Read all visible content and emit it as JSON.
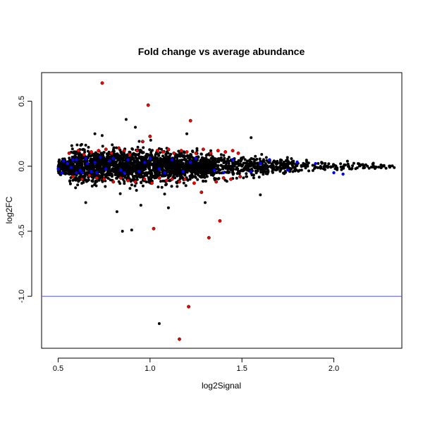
{
  "chart_data": {
    "type": "scatter",
    "title": "Fold change vs average abundance",
    "xlabel": "log2Signal",
    "ylabel": "log2FC",
    "xlim": [
      0.41,
      2.37
    ],
    "ylim": [
      -1.4,
      0.72
    ],
    "xticks": [
      0.5,
      1.0,
      1.5,
      2.0
    ],
    "xtick_labels": [
      "0.5",
      "1.0",
      "1.5",
      "2.0"
    ],
    "yticks": [
      -1.0,
      -0.5,
      0.0,
      0.5
    ],
    "ytick_labels": [
      "-1.0",
      "-0.5",
      "0.0",
      "0.5"
    ],
    "grid": false,
    "legend": "none",
    "colors": {
      "black": "#000000",
      "red": "#ff0000",
      "blue": "#0000ff",
      "hline": "#5555ee"
    },
    "hline": {
      "y": -1.0
    },
    "series": [
      {
        "color": "red",
        "points": [
          [
            0.74,
            0.64
          ],
          [
            0.99,
            0.47
          ],
          [
            1.22,
            0.35
          ],
          [
            1.02,
            -0.48
          ],
          [
            1.38,
            -0.42
          ],
          [
            1.32,
            -0.55
          ],
          [
            1.21,
            -1.08
          ],
          [
            1.16,
            -1.33
          ],
          [
            0.56,
            0.1
          ],
          [
            0.61,
            0.12
          ],
          [
            0.64,
            0.09
          ],
          [
            0.68,
            0.11
          ],
          [
            0.72,
            0.12
          ],
          [
            0.76,
            0.13
          ],
          [
            0.79,
            0.1
          ],
          [
            0.83,
            0.14
          ],
          [
            0.86,
            0.12
          ],
          [
            0.89,
            0.09
          ],
          [
            0.93,
            0.12
          ],
          [
            0.96,
            0.19
          ],
          [
            1.0,
            0.23
          ],
          [
            1.04,
            0.12
          ],
          [
            1.07,
            0.11
          ],
          [
            1.1,
            0.13
          ],
          [
            1.13,
            0.1
          ],
          [
            1.17,
            0.12
          ],
          [
            1.2,
            0.11
          ],
          [
            1.25,
            0.1
          ],
          [
            1.29,
            0.13
          ],
          [
            1.33,
            0.1
          ],
          [
            1.37,
            0.12
          ],
          [
            1.41,
            0.11
          ],
          [
            1.45,
            0.12
          ],
          [
            1.48,
            0.1
          ],
          [
            0.58,
            -0.08
          ],
          [
            0.63,
            -0.1
          ],
          [
            0.67,
            -0.07
          ],
          [
            0.71,
            -0.09
          ],
          [
            0.75,
            -0.1
          ],
          [
            0.8,
            -0.12
          ],
          [
            0.84,
            -0.09
          ],
          [
            0.88,
            -0.11
          ],
          [
            0.92,
            -0.12
          ],
          [
            0.97,
            -0.1
          ],
          [
            1.01,
            -0.13
          ],
          [
            1.05,
            -0.09
          ],
          [
            1.09,
            -0.11
          ],
          [
            1.12,
            -0.1
          ],
          [
            1.16,
            -0.12
          ],
          [
            1.19,
            -0.1
          ],
          [
            1.24,
            -0.13
          ],
          [
            1.28,
            -0.2
          ],
          [
            1.36,
            -0.12
          ],
          [
            1.4,
            -0.09
          ],
          [
            1.44,
            -0.1
          ],
          [
            1.49,
            -0.08
          ]
        ]
      },
      {
        "color": "blue",
        "points": [
          [
            0.5,
            -0.02
          ],
          [
            0.53,
            0.04
          ],
          [
            0.55,
            0.02
          ],
          [
            0.57,
            -0.01
          ],
          [
            0.6,
            0.05
          ],
          [
            0.62,
            -0.03
          ],
          [
            0.65,
            0.06
          ],
          [
            0.68,
            -0.04
          ],
          [
            0.7,
            0.03
          ],
          [
            0.73,
            0.07
          ],
          [
            0.76,
            -0.02
          ],
          [
            0.8,
            0.06
          ],
          [
            0.84,
            -0.03
          ],
          [
            0.88,
            0.05
          ],
          [
            0.94,
            -0.04
          ],
          [
            1.0,
            0.06
          ],
          [
            1.05,
            -0.02
          ],
          [
            1.12,
            0.05
          ],
          [
            1.18,
            -0.04
          ],
          [
            1.25,
            0.06
          ],
          [
            1.35,
            -0.03
          ],
          [
            1.45,
            0.05
          ],
          [
            1.55,
            -0.04
          ],
          [
            1.65,
            0.05
          ],
          [
            1.8,
            0.03
          ],
          [
            1.9,
            0.02
          ],
          [
            2.0,
            -0.05
          ],
          [
            2.05,
            -0.06
          ],
          [
            0.52,
            -0.05
          ],
          [
            0.58,
            0.05
          ],
          [
            0.63,
            -0.05
          ],
          [
            0.66,
            0.02
          ],
          [
            0.71,
            -0.05
          ],
          [
            0.78,
            0.04
          ],
          [
            0.86,
            -0.05
          ],
          [
            0.97,
            0.03
          ],
          [
            1.08,
            -0.05
          ],
          [
            1.22,
            0.03
          ],
          [
            1.4,
            -0.05
          ],
          [
            1.6,
            0.02
          ],
          [
            1.75,
            -0.03
          ],
          [
            0.6,
            -0.05
          ]
        ]
      }
    ]
  }
}
